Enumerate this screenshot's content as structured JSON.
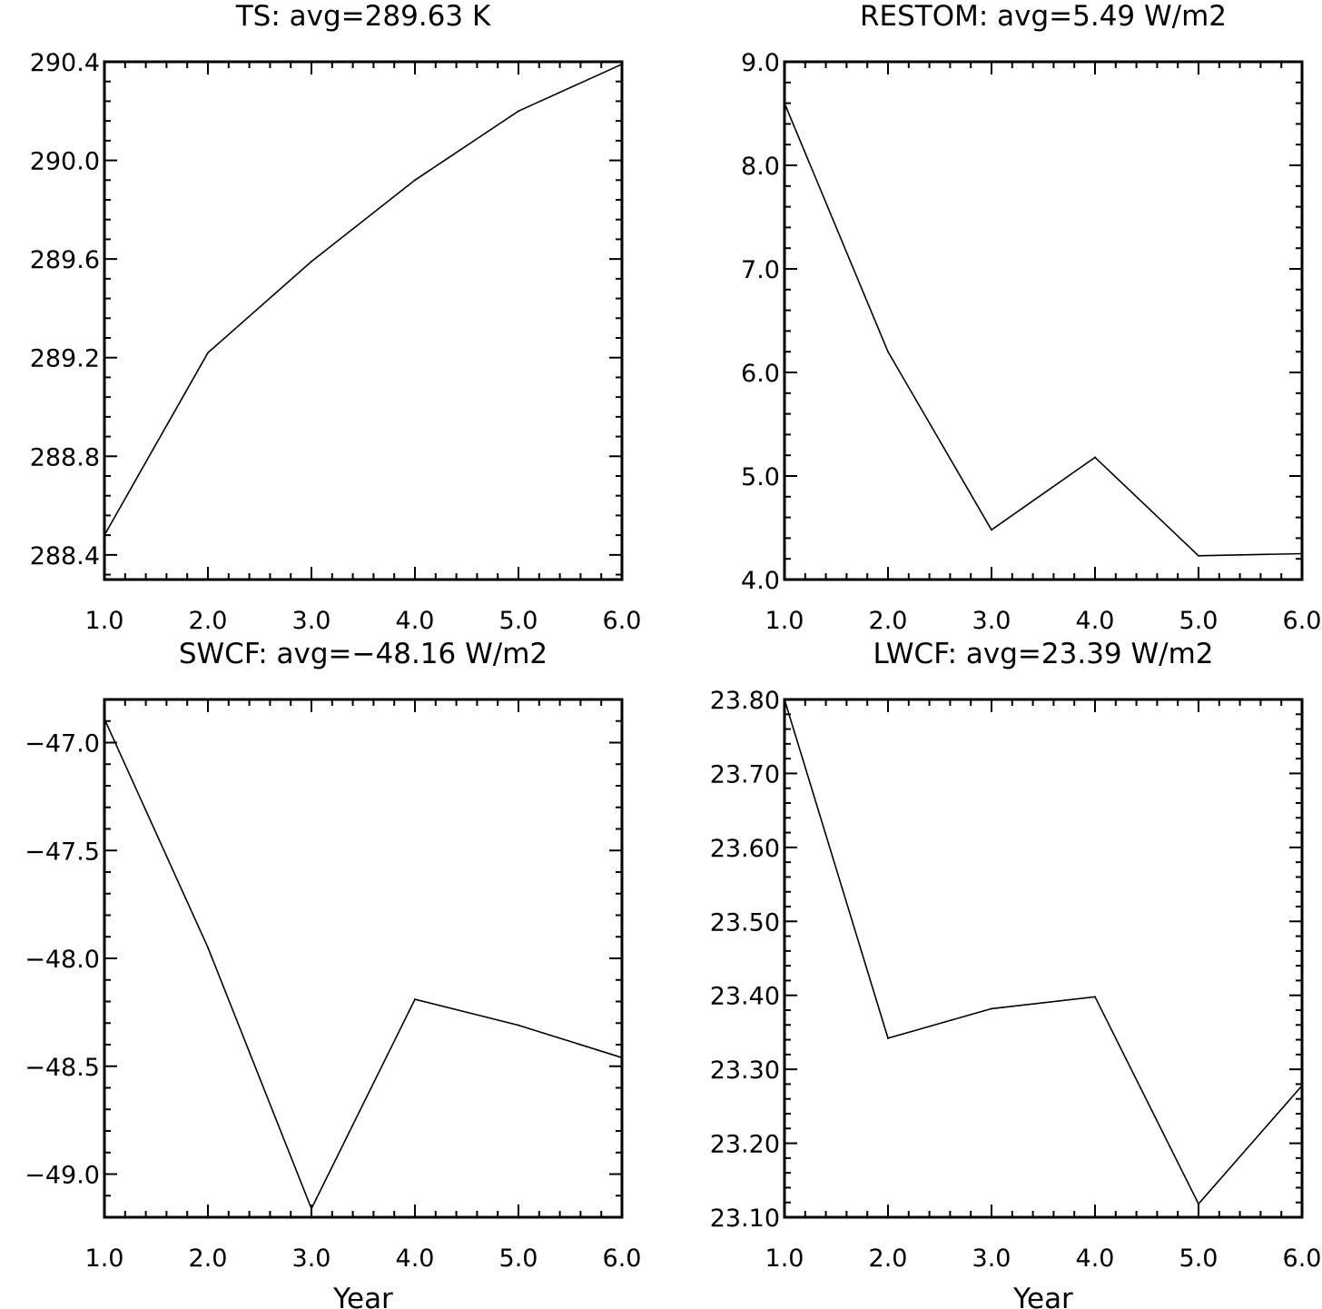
{
  "chart_data": [
    {
      "type": "line",
      "title": "TS: avg=289.63 K",
      "xlabel": "",
      "ylabel": "",
      "x": [
        1,
        2,
        3,
        4,
        5,
        6
      ],
      "values": [
        288.48,
        289.22,
        289.59,
        289.92,
        290.2,
        290.39
      ],
      "xlim": [
        1,
        6
      ],
      "ylim": [
        288.3,
        290.4
      ],
      "xticks": [
        "1.0",
        "2.0",
        "3.0",
        "4.0",
        "5.0",
        "6.0"
      ],
      "xtick_values": [
        1,
        2,
        3,
        4,
        5,
        6
      ],
      "yticks": [
        "288.4",
        "288.8",
        "289.2",
        "289.6",
        "290.0",
        "290.4"
      ],
      "ytick_values": [
        288.4,
        288.8,
        289.2,
        289.6,
        290.0,
        290.4
      ]
    },
    {
      "type": "line",
      "title": "RESTOM: avg=5.49 W/m2",
      "xlabel": "",
      "ylabel": "",
      "x": [
        1,
        2,
        3,
        4,
        5,
        6
      ],
      "values": [
        8.6,
        6.2,
        4.48,
        5.18,
        4.23,
        4.25
      ],
      "xlim": [
        1,
        6
      ],
      "ylim": [
        4.0,
        9.0
      ],
      "xticks": [
        "1.0",
        "2.0",
        "3.0",
        "4.0",
        "5.0",
        "6.0"
      ],
      "xtick_values": [
        1,
        2,
        3,
        4,
        5,
        6
      ],
      "yticks": [
        "4.0",
        "5.0",
        "6.0",
        "7.0",
        "8.0",
        "9.0"
      ],
      "ytick_values": [
        4.0,
        5.0,
        6.0,
        7.0,
        8.0,
        9.0
      ]
    },
    {
      "type": "line",
      "title": "SWCF: avg=−48.16 W/m2",
      "xlabel": "Year",
      "ylabel": "",
      "x": [
        1,
        2,
        3,
        4,
        5,
        6
      ],
      "values": [
        -46.89,
        -47.95,
        -49.16,
        -48.19,
        -48.31,
        -48.46
      ],
      "xlim": [
        1,
        6
      ],
      "ylim": [
        -49.2,
        -46.8
      ],
      "xticks": [
        "1.0",
        "2.0",
        "3.0",
        "4.0",
        "5.0",
        "6.0"
      ],
      "xtick_values": [
        1,
        2,
        3,
        4,
        5,
        6
      ],
      "yticks": [
        "−47.0",
        "−47.5",
        "−48.0",
        "−48.5",
        "−49.0"
      ],
      "ytick_values": [
        -47.0,
        -47.5,
        -48.0,
        -48.5,
        -49.0
      ]
    },
    {
      "type": "line",
      "title": "LWCF: avg=23.39 W/m2",
      "xlabel": "Year",
      "ylabel": "",
      "x": [
        1,
        2,
        3,
        4,
        5,
        6
      ],
      "values": [
        23.8,
        23.342,
        23.382,
        23.398,
        23.118,
        23.278
      ],
      "xlim": [
        1,
        6
      ],
      "ylim": [
        23.1,
        23.8
      ],
      "xticks": [
        "1.0",
        "2.0",
        "3.0",
        "4.0",
        "5.0",
        "6.0"
      ],
      "xtick_values": [
        1,
        2,
        3,
        4,
        5,
        6
      ],
      "yticks": [
        "23.10",
        "23.20",
        "23.30",
        "23.40",
        "23.50",
        "23.60",
        "23.70",
        "23.80"
      ],
      "ytick_values": [
        23.1,
        23.2,
        23.3,
        23.4,
        23.5,
        23.6,
        23.7,
        23.8
      ]
    }
  ]
}
